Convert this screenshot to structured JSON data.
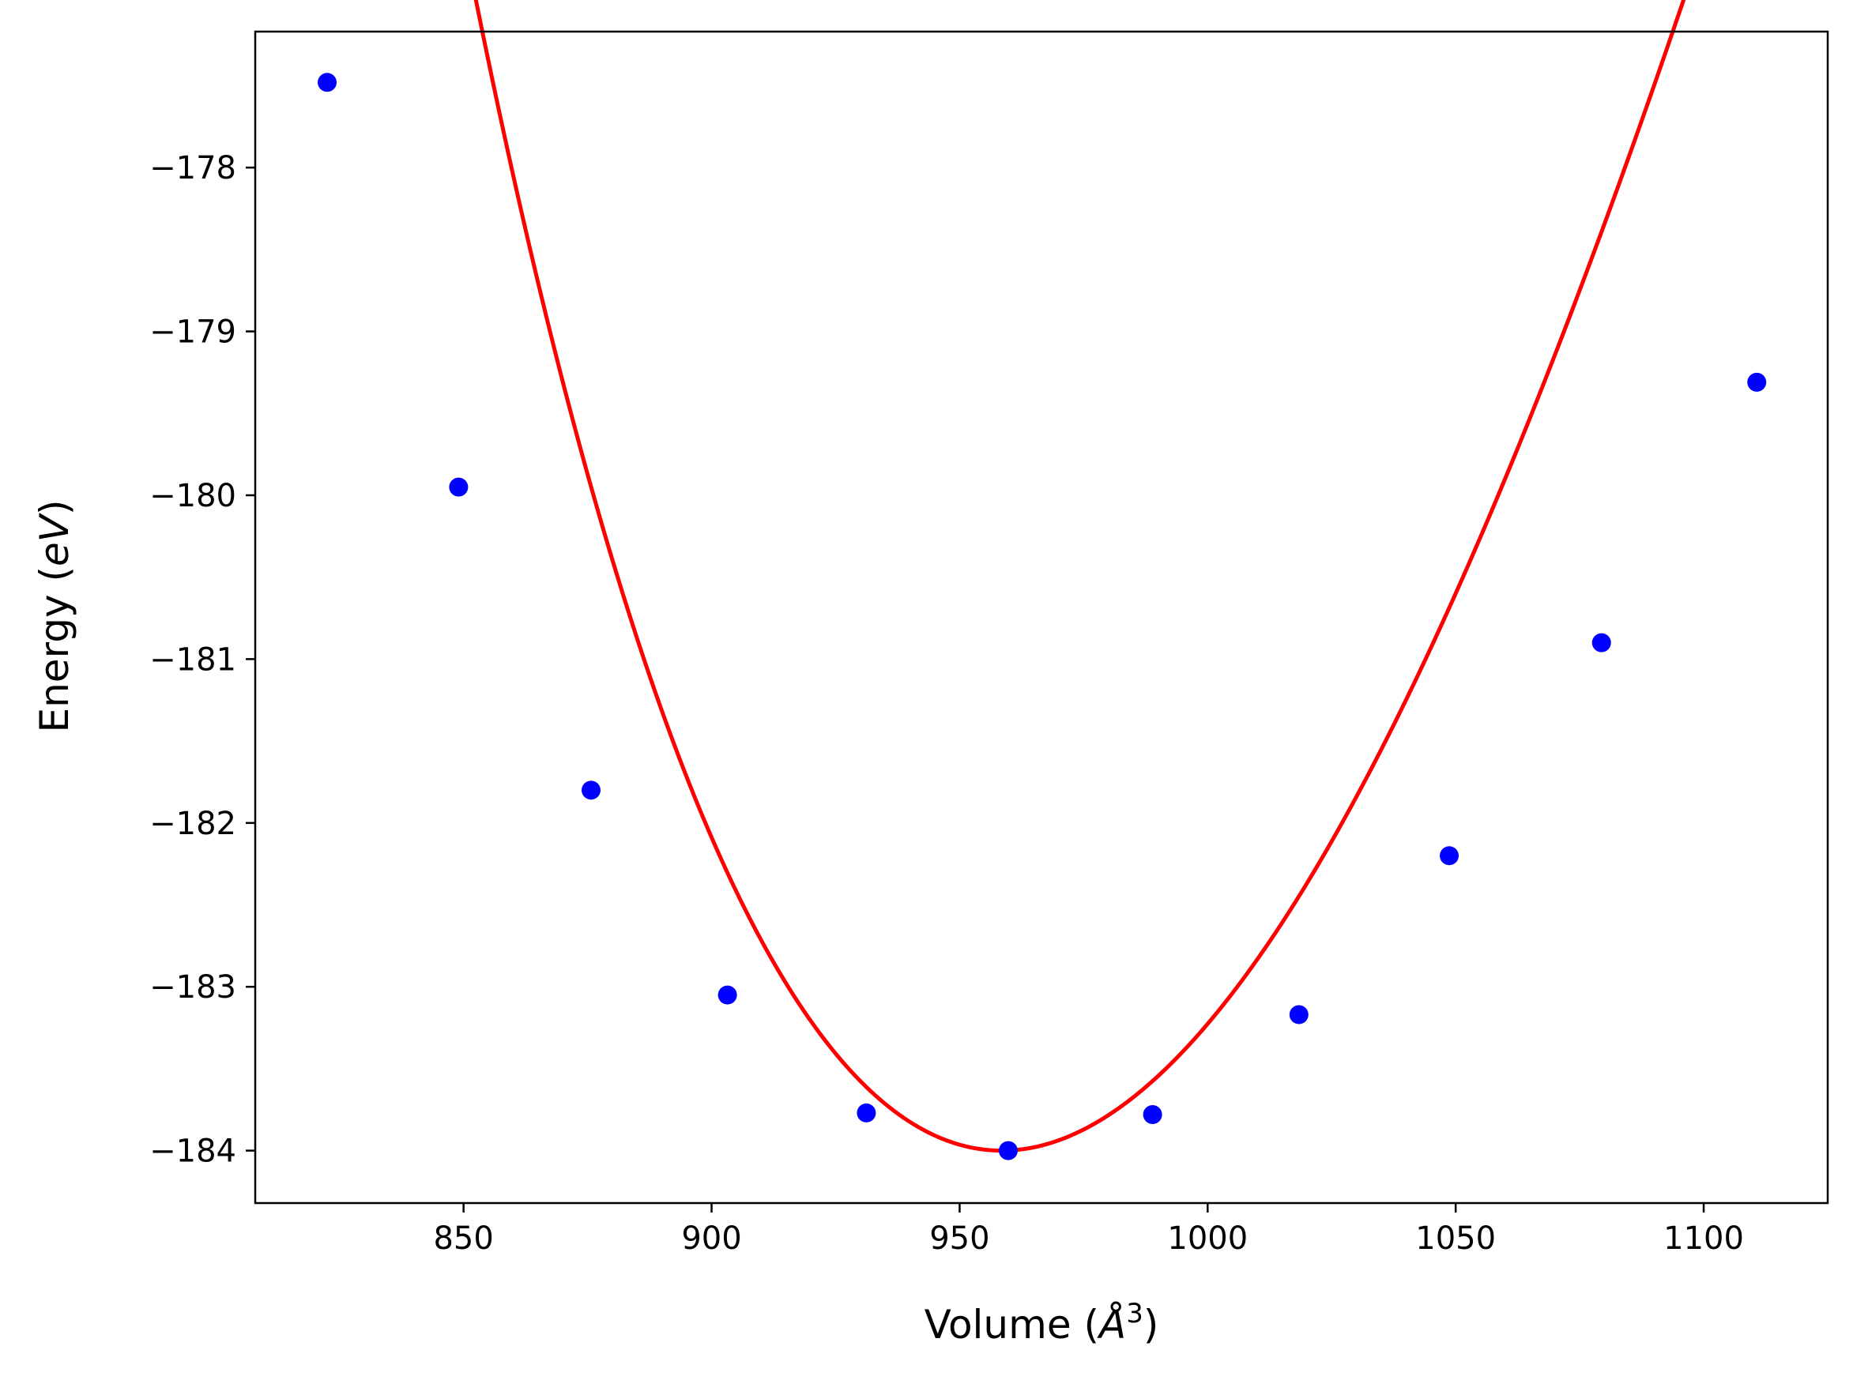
{
  "chart_data": {
    "type": "scatter",
    "xlabel": "Volume (",
    "xlabel_symbol": "Å",
    "xlabel_exponent": "3",
    "xlabel_close": ")",
    "ylabel": "Energy (",
    "ylabel_italic": "eV",
    "ylabel_close": ")",
    "xlim": [
      808,
      1125
    ],
    "ylim": [
      -184.32,
      -177.17
    ],
    "xticks": [
      850,
      900,
      950,
      1000,
      1050,
      1100
    ],
    "xtick_labels": [
      "850",
      "900",
      "950",
      "1000",
      "1050",
      "1100"
    ],
    "yticks": [
      -178,
      -179,
      -180,
      -181,
      -182,
      -183,
      -184
    ],
    "ytick_labels": [
      "−178",
      "−179",
      "−180",
      "−181",
      "−182",
      "−183",
      "−184"
    ],
    "grid": false,
    "series": [
      {
        "kind": "markers",
        "color": "#0000ff",
        "points": [
          {
            "x": 822.5,
            "y": -177.48
          },
          {
            "x": 849.0,
            "y": -179.95
          },
          {
            "x": 875.7,
            "y": -181.8
          },
          {
            "x": 903.2,
            "y": -183.05
          },
          {
            "x": 931.2,
            "y": -183.77
          },
          {
            "x": 959.8,
            "y": -184.0
          },
          {
            "x": 988.9,
            "y": -183.78
          },
          {
            "x": 1018.4,
            "y": -183.17
          },
          {
            "x": 1048.7,
            "y": -182.2
          },
          {
            "x": 1079.4,
            "y": -180.9
          },
          {
            "x": 1110.7,
            "y": -179.31
          }
        ]
      },
      {
        "kind": "fit-line",
        "color": "#ff0000",
        "x_range": [
          822.5,
          1110.7
        ],
        "fit": {
          "E0": -184.0,
          "V0": 958.5,
          "B0": 0.94,
          "Bp": 5.2
        }
      }
    ]
  }
}
